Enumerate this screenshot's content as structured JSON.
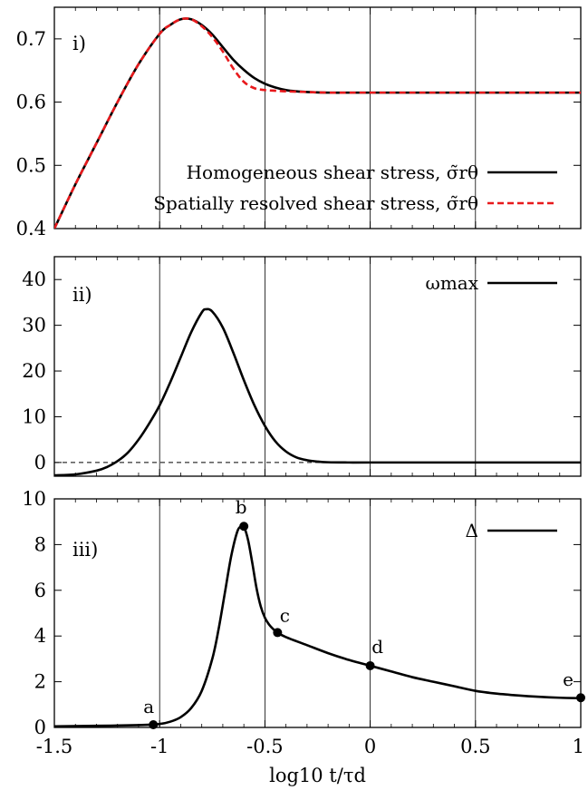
{
  "chart_data": [
    {
      "type": "line",
      "panel_label": "i)",
      "xlim": [
        -1.5,
        1
      ],
      "ylim": [
        0.4,
        0.75
      ],
      "x_ticks": [
        -1.5,
        -1,
        -0.5,
        0,
        0.5,
        1
      ],
      "y_ticks": [
        0.4,
        0.5,
        0.6,
        0.7
      ],
      "y_tick_labels": [
        "0.4",
        "0.5",
        "0.6",
        "0.7"
      ],
      "grid_x": [
        -1,
        -0.5,
        0,
        0.5
      ],
      "legend_position": "lower-right",
      "series": [
        {
          "name": "Homogeneous shear stress, σ̃rθ",
          "color": "#000000",
          "dash": "solid",
          "x": [
            -1.5,
            -1.4,
            -1.3,
            -1.2,
            -1.1,
            -1.0,
            -0.95,
            -0.9,
            -0.85,
            -0.8,
            -0.75,
            -0.7,
            -0.65,
            -0.6,
            -0.55,
            -0.5,
            -0.45,
            -0.4,
            -0.35,
            -0.3,
            -0.2,
            -0.1,
            0.0,
            0.2,
            0.5,
            1.0
          ],
          "y": [
            0.4,
            0.47,
            0.535,
            0.6,
            0.66,
            0.708,
            0.722,
            0.731,
            0.731,
            0.722,
            0.707,
            0.687,
            0.667,
            0.651,
            0.638,
            0.629,
            0.623,
            0.619,
            0.617,
            0.616,
            0.615,
            0.615,
            0.615,
            0.615,
            0.615,
            0.615
          ]
        },
        {
          "name": "Spatially resolved shear stress, σ̃rθ",
          "color": "#e8191c",
          "dash": "dashed",
          "x": [
            -1.5,
            -1.4,
            -1.3,
            -1.2,
            -1.1,
            -1.0,
            -0.95,
            -0.9,
            -0.85,
            -0.8,
            -0.75,
            -0.7,
            -0.65,
            -0.6,
            -0.55,
            -0.5,
            -0.45,
            -0.4,
            -0.3,
            -0.2,
            0.0,
            0.5,
            1.0
          ],
          "y": [
            0.4,
            0.47,
            0.535,
            0.6,
            0.66,
            0.708,
            0.722,
            0.731,
            0.731,
            0.72,
            0.703,
            0.68,
            0.653,
            0.632,
            0.622,
            0.619,
            0.618,
            0.617,
            0.616,
            0.615,
            0.615,
            0.615,
            0.615
          ]
        }
      ]
    },
    {
      "type": "line",
      "panel_label": "ii)",
      "xlim": [
        -1.5,
        1
      ],
      "ylim": [
        -3,
        45
      ],
      "x_ticks": [
        -1.5,
        -1,
        -0.5,
        0,
        0.5,
        1
      ],
      "y_ticks": [
        0,
        10,
        20,
        30,
        40
      ],
      "y_tick_labels": [
        "0",
        "10",
        "20",
        "30",
        "40"
      ],
      "grid_x": [
        -1,
        -0.5,
        0,
        0.5
      ],
      "zero_line": true,
      "legend_position": "top-right",
      "series": [
        {
          "name": "ωmax",
          "color": "#000000",
          "dash": "solid",
          "x": [
            -1.5,
            -1.4,
            -1.3,
            -1.25,
            -1.2,
            -1.15,
            -1.1,
            -1.05,
            -1.0,
            -0.95,
            -0.9,
            -0.85,
            -0.8,
            -0.78,
            -0.75,
            -0.7,
            -0.65,
            -0.6,
            -0.55,
            -0.5,
            -0.45,
            -0.4,
            -0.35,
            -0.3,
            -0.25,
            -0.2,
            -0.1,
            0.0,
            0.5,
            1.0
          ],
          "y": [
            -2.8,
            -2.6,
            -1.8,
            -1.0,
            0.3,
            2.2,
            5.0,
            8.5,
            12.5,
            17.5,
            23.0,
            28.5,
            32.8,
            33.5,
            33.0,
            29.5,
            24.0,
            18.0,
            12.5,
            8.0,
            4.6,
            2.4,
            1.1,
            0.5,
            0.2,
            0.05,
            0.0,
            0.0,
            0.0,
            0.0
          ]
        }
      ]
    },
    {
      "type": "line",
      "panel_label": "iii)",
      "xlim": [
        -1.5,
        1
      ],
      "ylim": [
        0,
        10
      ],
      "x_ticks": [
        -1.5,
        -1,
        -0.5,
        0,
        0.5,
        1
      ],
      "x_tick_labels": [
        "-1.5",
        "-1",
        "-0.5",
        "0",
        "0.5",
        "1"
      ],
      "y_ticks": [
        0,
        2,
        4,
        6,
        8,
        10
      ],
      "y_tick_labels": [
        "0",
        "2",
        "4",
        "6",
        "8",
        "10"
      ],
      "grid_x": [
        -1,
        -0.5,
        0,
        0.5
      ],
      "xlabel": "log10 t/τd",
      "legend_position": "top-right",
      "series": [
        {
          "name": "Δ",
          "color": "#000000",
          "dash": "solid",
          "x": [
            -1.5,
            -1.3,
            -1.1,
            -1.0,
            -0.95,
            -0.9,
            -0.85,
            -0.8,
            -0.75,
            -0.72,
            -0.69,
            -0.66,
            -0.63,
            -0.61,
            -0.6,
            -0.58,
            -0.56,
            -0.54,
            -0.52,
            -0.5,
            -0.48,
            -0.46,
            -0.44,
            -0.4,
            -0.3,
            -0.2,
            -0.1,
            0.0,
            0.1,
            0.2,
            0.3,
            0.4,
            0.5,
            0.6,
            0.7,
            0.8,
            0.9,
            1.0
          ],
          "y": [
            0.05,
            0.07,
            0.1,
            0.15,
            0.25,
            0.45,
            0.85,
            1.6,
            3.0,
            4.3,
            5.9,
            7.5,
            8.6,
            8.8,
            8.8,
            8.2,
            7.2,
            6.1,
            5.3,
            4.8,
            4.5,
            4.3,
            4.15,
            3.95,
            3.6,
            3.25,
            2.95,
            2.7,
            2.45,
            2.2,
            2.0,
            1.8,
            1.6,
            1.48,
            1.4,
            1.34,
            1.3,
            1.28
          ]
        }
      ],
      "points": [
        {
          "label": "a",
          "x": -1.03,
          "y": 0.12
        },
        {
          "label": "b",
          "x": -0.6,
          "y": 8.8
        },
        {
          "label": "c",
          "x": -0.44,
          "y": 4.15
        },
        {
          "label": "d",
          "x": 0.0,
          "y": 2.7
        },
        {
          "label": "e",
          "x": 1.0,
          "y": 1.3
        }
      ]
    }
  ]
}
